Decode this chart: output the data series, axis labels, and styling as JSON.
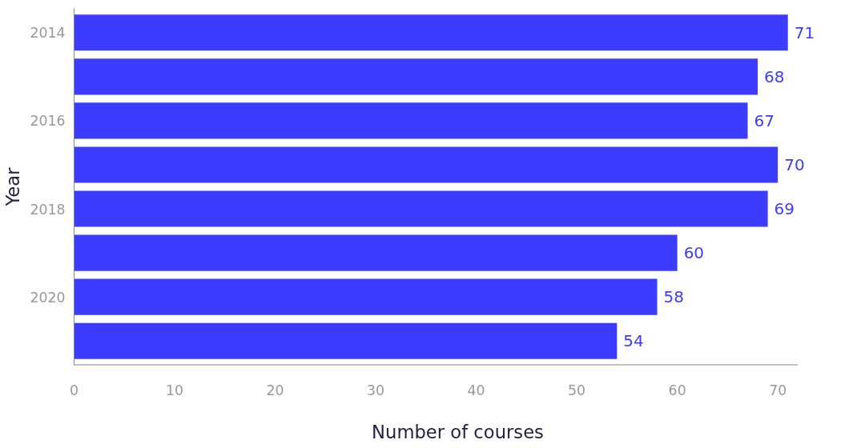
{
  "chart_data": {
    "type": "bar",
    "orientation": "horizontal",
    "xlabel": "Number of courses",
    "ylabel": "Year",
    "categories": [
      "2014",
      null,
      "2016",
      null,
      "2018",
      null,
      "2020",
      null
    ],
    "values": [
      71,
      68,
      67,
      70,
      69,
      60,
      58,
      54
    ],
    "color": "#3c3cff",
    "data_labels": true,
    "grid": false,
    "xlim": [
      0,
      72
    ],
    "xticks": [
      0,
      10,
      20,
      30,
      40,
      50,
      60,
      70
    ]
  }
}
